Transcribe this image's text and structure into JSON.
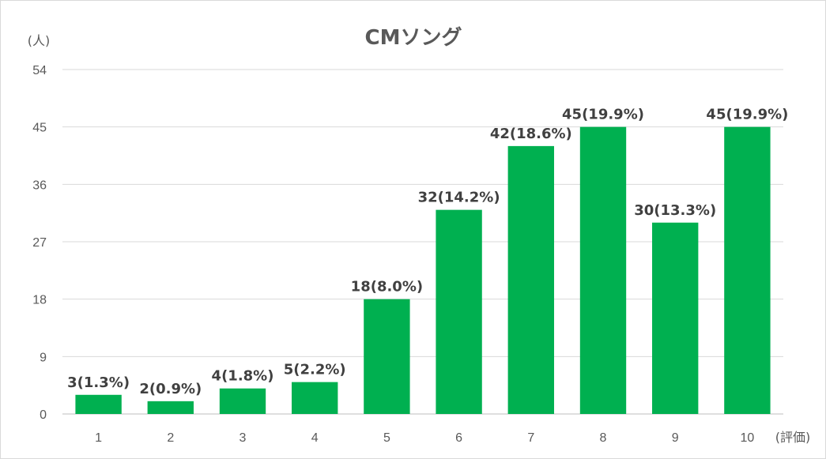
{
  "chart_data": {
    "type": "bar",
    "title": "CMソング",
    "y_unit": "(人)",
    "x_unit": "(評価)",
    "categories": [
      "1",
      "2",
      "3",
      "4",
      "5",
      "6",
      "7",
      "8",
      "9",
      "10"
    ],
    "values": [
      3,
      2,
      4,
      5,
      18,
      32,
      42,
      45,
      30,
      45
    ],
    "data_labels": [
      "3(1.3%)",
      "2(0.9%)",
      "4(1.8%)",
      "5(2.2%)",
      "18(8.0%)",
      "32(14.2%)",
      "42(18.6%)",
      "45(19.9%)",
      "30(13.3%)",
      "45(19.9%)"
    ],
    "y_ticks": [
      "0",
      "9",
      "18",
      "27",
      "36",
      "45",
      "54"
    ],
    "ylim": [
      0,
      54
    ],
    "grid": true,
    "legend": "none",
    "bar_color": "#00b050"
  }
}
